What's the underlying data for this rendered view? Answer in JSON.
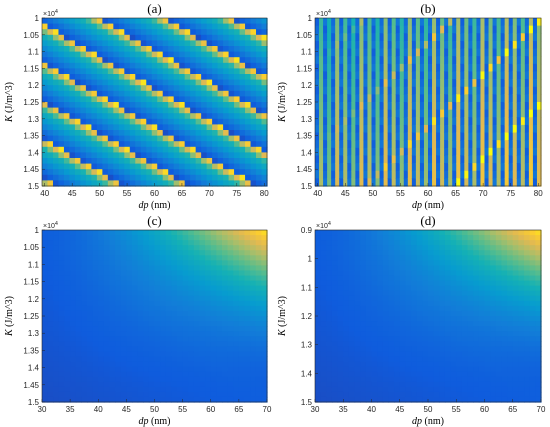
{
  "colors": {
    "colormap": "parula",
    "axis_line": "#262626",
    "background": "#ffffff"
  },
  "chart_data": [
    {
      "type": "heatmap",
      "panel_label": "(a)",
      "pattern": "diagonal-bands",
      "xlabel_var": "dp",
      "xlabel_unit": " (nm)",
      "ylabel_var": "K",
      "ylabel_unit": " (J/m^3)",
      "y_multiplier": "×10",
      "y_exponent": "4",
      "xlim": [
        39.5,
        80.5
      ],
      "ylim": [
        1.0,
        1.5
      ],
      "y_reversed": true,
      "xticks": [
        "40",
        "45",
        "50",
        "55",
        "60",
        "65",
        "70",
        "75",
        "80"
      ],
      "yticks": [
        "1",
        "1.05",
        "1.1",
        "1.15",
        "1.2",
        "1.25",
        "1.3",
        "1.35",
        "1.4",
        "1.45",
        "1.5"
      ],
      "grid": false
    },
    {
      "type": "heatmap",
      "panel_label": "(b)",
      "pattern": "vertical-stripes",
      "xlabel_var": "dp",
      "xlabel_unit": " (nm)",
      "ylabel_var": "K",
      "ylabel_unit": " (J/m^3)",
      "y_multiplier": "×10",
      "y_exponent": "4",
      "xlim": [
        39.5,
        80.5
      ],
      "ylim": [
        1.0,
        1.5
      ],
      "y_reversed": true,
      "xticks": [
        "40",
        "45",
        "50",
        "55",
        "60",
        "65",
        "70",
        "75",
        "80"
      ],
      "yticks": [
        "1",
        "1.05",
        "1.1",
        "1.15",
        "1.2",
        "1.25",
        "1.3",
        "1.35",
        "1.4",
        "1.45",
        "1.5"
      ],
      "grid": false
    },
    {
      "type": "heatmap",
      "panel_label": "(c)",
      "pattern": "smooth-gradient-top-right",
      "xlabel_var": "dp",
      "xlabel_unit": " (nm)",
      "ylabel_var": "K",
      "ylabel_unit": " (J/m^3)",
      "y_multiplier": "×10",
      "y_exponent": "4",
      "xlim": [
        30,
        70
      ],
      "ylim": [
        1.0,
        1.5
      ],
      "y_reversed": true,
      "xticks": [
        "30",
        "35",
        "40",
        "45",
        "50",
        "55",
        "60",
        "65",
        "70"
      ],
      "yticks": [
        "1",
        "1.05",
        "1.1",
        "1.15",
        "1.2",
        "1.25",
        "1.3",
        "1.35",
        "1.4",
        "1.45",
        "1.5"
      ],
      "grid": false
    },
    {
      "type": "heatmap",
      "panel_label": "(d)",
      "pattern": "smooth-gradient-top-right",
      "xlabel_var": "dp",
      "xlabel_unit": " (nm)",
      "ylabel_var": "K",
      "ylabel_unit": " (J/m^3)",
      "y_multiplier": "×10",
      "y_exponent": "4",
      "xlim": [
        30,
        70
      ],
      "ylim": [
        0.9,
        1.5
      ],
      "y_reversed": true,
      "xticks": [
        "30",
        "35",
        "40",
        "45",
        "50",
        "55",
        "60",
        "65",
        "70"
      ],
      "yticks": [
        "0.9",
        "1",
        "1.1",
        "1.2",
        "1.3",
        "1.4",
        "1.5"
      ],
      "grid": false
    }
  ]
}
